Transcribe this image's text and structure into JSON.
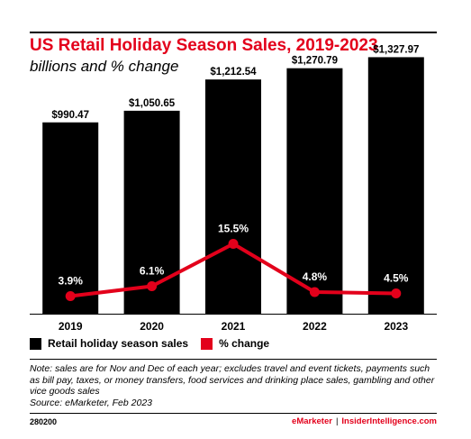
{
  "header": {
    "title": "US Retail Holiday Season Sales, 2019-2023",
    "subtitle": "billions and % change"
  },
  "chart_data": {
    "type": "bar",
    "categories": [
      "2019",
      "2020",
      "2021",
      "2022",
      "2023"
    ],
    "series": [
      {
        "name": "Retail holiday season sales",
        "type": "bar",
        "values": [
          990.47,
          1050.65,
          1212.54,
          1270.79,
          1327.97
        ],
        "labels": [
          "$990.47",
          "$1,050.65",
          "$1,212.54",
          "$1,270.79",
          "$1,327.97"
        ],
        "color": "#000000"
      },
      {
        "name": "% change",
        "type": "line",
        "values": [
          3.9,
          6.1,
          15.5,
          4.8,
          4.5
        ],
        "labels": [
          "3.9%",
          "6.1%",
          "15.5%",
          "4.8%",
          "4.5%"
        ],
        "color": "#e3001b"
      }
    ],
    "ylim": [
      0,
      1400
    ],
    "ylim_secondary": [
      0,
      60
    ],
    "grid": false,
    "legend": "bottom-left"
  },
  "notes": {
    "text": "Note: sales are for Nov and Dec of each year; excludes travel and event tickets, payments such as bill pay, taxes, or money transfers, food services and drinking place sales, gambling and other vice goods sales",
    "source": "Source: eMarketer, Feb 2023"
  },
  "footer": {
    "id": "280200",
    "brand_left": "eMarketer",
    "separator": "|",
    "brand_right": "InsiderIntelligence.com"
  }
}
